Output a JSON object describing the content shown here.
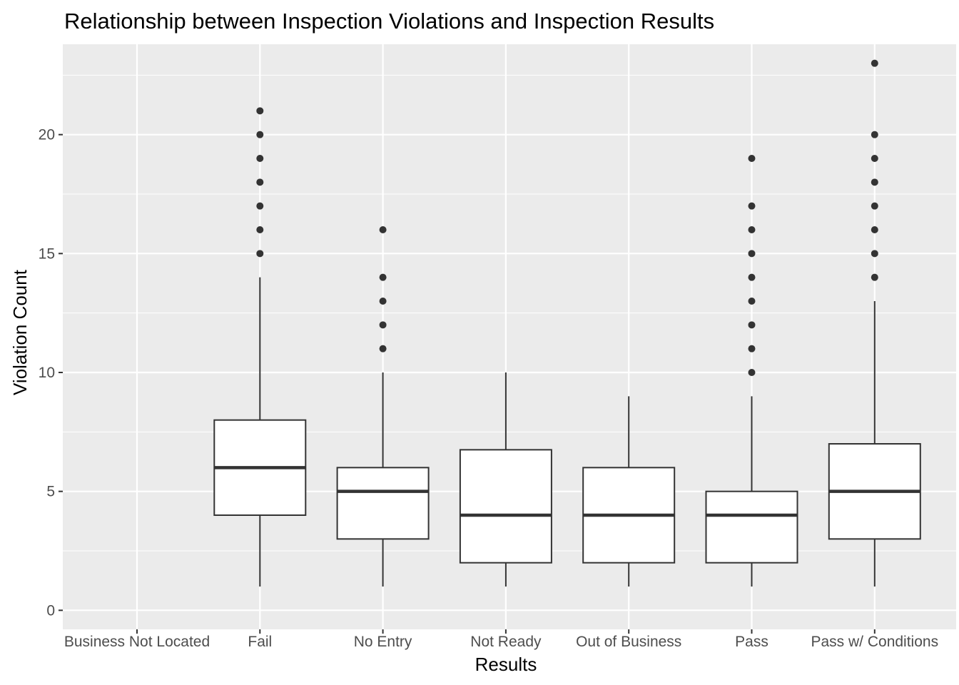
{
  "chart_data": {
    "type": "boxplot",
    "title": "Relationship between Inspection Violations and Inspection Results",
    "xlabel": "Results",
    "ylabel": "Violation Count",
    "ylim": [
      -0.8,
      23.8
    ],
    "yticks": [
      0,
      5,
      10,
      15,
      20
    ],
    "grid": true,
    "legend": "none",
    "colors": {
      "panel": "#EBEBEB",
      "grid": "#FFFFFF",
      "box_fill": "#FFFFFF",
      "box_stroke": "#333333",
      "point": "#333333",
      "tick_text": "#4D4D4D"
    },
    "categories": [
      "Business Not Located",
      "Fail",
      "No Entry",
      "Not Ready",
      "Out of Business",
      "Pass",
      "Pass w/ Conditions"
    ],
    "boxes": [
      {
        "category": "Business Not Located",
        "min": null,
        "q1": null,
        "median": null,
        "q3": null,
        "max": null,
        "outliers": []
      },
      {
        "category": "Fail",
        "min": 1,
        "q1": 4,
        "median": 6,
        "q3": 8,
        "max": 14,
        "outliers": [
          15,
          16,
          17,
          18,
          19,
          20,
          21
        ]
      },
      {
        "category": "No Entry",
        "min": 1,
        "q1": 3,
        "median": 5,
        "q3": 6,
        "max": 10,
        "outliers": [
          11,
          12,
          13,
          14,
          16
        ]
      },
      {
        "category": "Not Ready",
        "min": 1,
        "q1": 2,
        "median": 4,
        "q3": 6.75,
        "max": 10,
        "outliers": []
      },
      {
        "category": "Out of Business",
        "min": 1,
        "q1": 2,
        "median": 4,
        "q3": 6,
        "max": 9,
        "outliers": []
      },
      {
        "category": "Pass",
        "min": 1,
        "q1": 2,
        "median": 4,
        "q3": 5,
        "max": 9,
        "outliers": [
          10,
          11,
          12,
          13,
          14,
          15,
          16,
          17,
          19
        ]
      },
      {
        "category": "Pass w/ Conditions",
        "min": 1,
        "q1": 3,
        "median": 5,
        "q3": 7,
        "max": 13,
        "outliers": [
          14,
          15,
          16,
          17,
          18,
          19,
          20,
          23
        ]
      }
    ]
  }
}
